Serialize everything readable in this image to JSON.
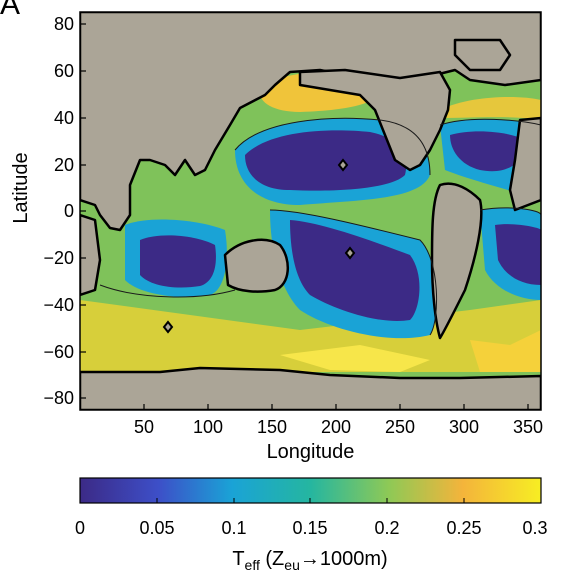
{
  "panel_label": "A",
  "map": {
    "y_ticks": [
      "80",
      "60",
      "40",
      "20",
      "0",
      "−20",
      "−40",
      "−60",
      "−80"
    ],
    "x_ticks": [
      "50",
      "100",
      "150",
      "200",
      "250",
      "300",
      "350"
    ],
    "ylabel": "Latitude",
    "xlabel": "Longitude",
    "lon_range": [
      0,
      360
    ],
    "lat_range": [
      -85,
      85
    ],
    "land_color": "#ABA597",
    "coast_color": "#000000"
  },
  "colorbar": {
    "ticks": [
      "0",
      "0.05",
      "0.1",
      "0.15",
      "0.2",
      "0.25",
      "0.3"
    ],
    "range": [
      0,
      0.3
    ],
    "colormap": [
      "#3C2A86",
      "#3D4FC8",
      "#1AA3D6",
      "#25B6A0",
      "#8EC956",
      "#F4B43B",
      "#F7EE23"
    ],
    "label_main": "T",
    "label_sub1": "eff",
    "label_mid": " (Z",
    "label_sub2": "eu",
    "label_end": "→1000m)"
  }
}
